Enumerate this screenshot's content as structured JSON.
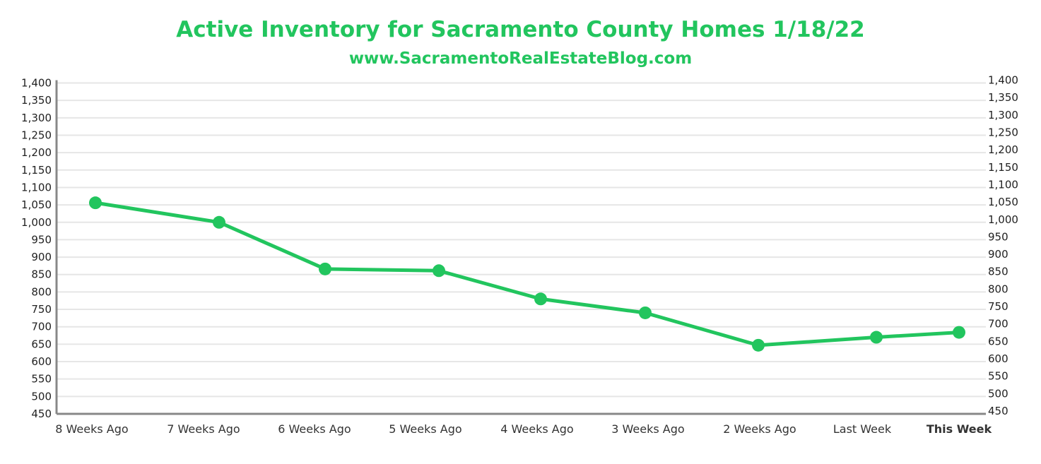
{
  "chart_data": {
    "type": "line",
    "title": "Active Inventory for Sacramento County Homes 1/18/22",
    "subtitle": "www.SacramentoRealEstateBlog.com",
    "xlabel": "",
    "ylabel": "",
    "categories": [
      "8 Weeks Ago",
      "7 Weeks Ago",
      "6 Weeks Ago",
      "5 Weeks Ago",
      "4 Weeks Ago",
      "3 Weeks Ago",
      "2 Weeks Ago",
      "Last Week",
      "This Week"
    ],
    "values": [
      1056,
      1000,
      866,
      861,
      780,
      740,
      647,
      670,
      684
    ],
    "ylim": [
      450,
      1400
    ],
    "yticks": [
      "450",
      "500",
      "550",
      "600",
      "650",
      "700",
      "750",
      "800",
      "850",
      "900",
      "950",
      "1,000",
      "1,050",
      "1,100",
      "1,150",
      "1,200",
      "1,250",
      "1,300",
      "1,350",
      "1,400"
    ],
    "y_axis_sides": [
      "left",
      "right"
    ],
    "grid": true,
    "legend": "none",
    "line_color": "#22c55e",
    "highlight_category_color": "#22c55e"
  }
}
